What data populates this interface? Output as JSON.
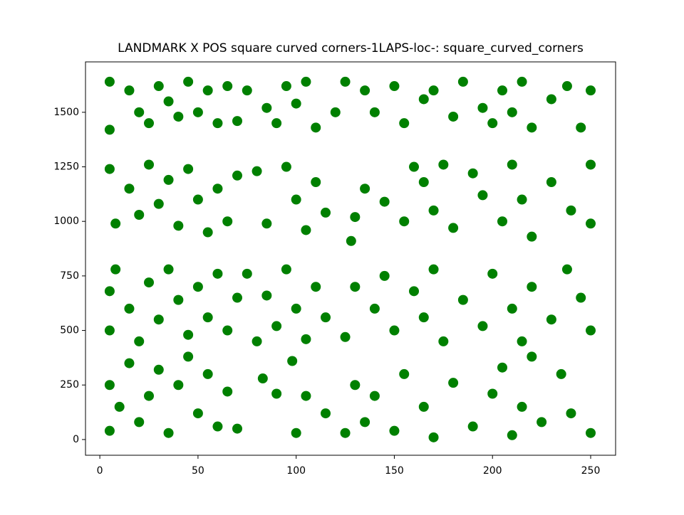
{
  "chart_data": {
    "type": "scatter",
    "title": "LANDMARK X POS square curved corners-1LAPS-loc-: square_curved_corners",
    "color": "#008000",
    "x": [
      5,
      5,
      15,
      20,
      25,
      30,
      35,
      40,
      45,
      50,
      55,
      60,
      65,
      70,
      75,
      85,
      90,
      95,
      100,
      105,
      110,
      120,
      125,
      135,
      140,
      150,
      155,
      165,
      170,
      180,
      185,
      195,
      200,
      205,
      210,
      215,
      220,
      230,
      238,
      245,
      250,
      5,
      8,
      15,
      20,
      25,
      30,
      35,
      40,
      45,
      50,
      55,
      60,
      65,
      70,
      80,
      85,
      95,
      100,
      105,
      110,
      115,
      128,
      130,
      135,
      145,
      155,
      160,
      165,
      170,
      175,
      180,
      190,
      195,
      205,
      210,
      215,
      220,
      230,
      240,
      250,
      250,
      5,
      5,
      8,
      15,
      20,
      25,
      30,
      35,
      40,
      45,
      50,
      55,
      60,
      65,
      70,
      75,
      80,
      85,
      90,
      95,
      100,
      105,
      110,
      115,
      125,
      130,
      140,
      145,
      150,
      160,
      165,
      170,
      175,
      185,
      195,
      200,
      210,
      215,
      220,
      230,
      238,
      245,
      250,
      5,
      5,
      10,
      15,
      20,
      25,
      30,
      35,
      40,
      45,
      50,
      55,
      60,
      65,
      70,
      83,
      90,
      98,
      100,
      105,
      115,
      125,
      130,
      135,
      140,
      150,
      155,
      165,
      170,
      180,
      190,
      200,
      205,
      210,
      215,
      220,
      225,
      235,
      240,
      250
    ],
    "y": [
      1420,
      1640,
      1600,
      1500,
      1450,
      1620,
      1550,
      1480,
      1640,
      1500,
      1600,
      1450,
      1620,
      1460,
      1600,
      1520,
      1450,
      1620,
      1540,
      1640,
      1430,
      1500,
      1640,
      1600,
      1500,
      1620,
      1450,
      1560,
      1600,
      1480,
      1640,
      1520,
      1450,
      1600,
      1500,
      1640,
      1430,
      1560,
      1620,
      1430,
      1600,
      1240,
      990,
      1150,
      1030,
      1260,
      1080,
      1190,
      980,
      1240,
      1100,
      950,
      1150,
      1000,
      1210,
      1230,
      990,
      1250,
      1100,
      960,
      1180,
      1040,
      910,
      1020,
      1150,
      1090,
      1000,
      1250,
      1180,
      1050,
      1260,
      970,
      1220,
      1120,
      1000,
      1260,
      1100,
      930,
      1180,
      1050,
      1260,
      990,
      680,
      500,
      780,
      600,
      450,
      720,
      550,
      780,
      640,
      480,
      700,
      560,
      760,
      500,
      650,
      760,
      450,
      660,
      520,
      780,
      600,
      460,
      700,
      560,
      470,
      700,
      600,
      750,
      500,
      680,
      560,
      780,
      450,
      640,
      520,
      760,
      600,
      450,
      700,
      550,
      780,
      650,
      500,
      250,
      40,
      150,
      350,
      80,
      200,
      320,
      30,
      250,
      380,
      120,
      300,
      60,
      220,
      50,
      280,
      210,
      360,
      30,
      200,
      120,
      30,
      250,
      80,
      200,
      40,
      300,
      150,
      10,
      260,
      60,
      210,
      330,
      20,
      150,
      380,
      80,
      300,
      120,
      30
    ],
    "xlim": [
      -7.3,
      262.7
    ],
    "ylim": [
      -72,
      1731
    ],
    "xticks": [
      0,
      50,
      100,
      150,
      200,
      250
    ],
    "yticks": [
      0,
      250,
      500,
      750,
      1000,
      1250,
      1500
    ]
  }
}
